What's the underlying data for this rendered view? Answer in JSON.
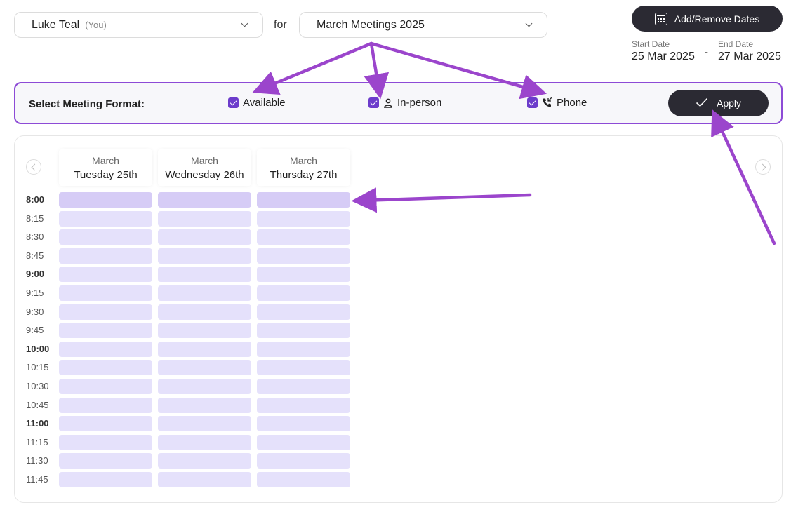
{
  "header": {
    "user_select": {
      "name": "Luke Teal",
      "tag": "(You)"
    },
    "for_label": "for",
    "meeting_select": {
      "value": "March Meetings 2025"
    },
    "add_dates_label": "Add/Remove Dates",
    "start_date": {
      "label": "Start Date",
      "value": "25 Mar 2025"
    },
    "date_separator": "-",
    "end_date": {
      "label": "End Date",
      "value": "27 Mar 2025"
    }
  },
  "format_bar": {
    "label": "Select Meeting Format:",
    "options": [
      {
        "label": "Available",
        "checked": true
      },
      {
        "label": "In-person",
        "checked": true,
        "icon": "person-icon"
      },
      {
        "label": "Phone",
        "checked": true,
        "icon": "phone-icon"
      }
    ],
    "apply_label": "Apply"
  },
  "calendar": {
    "days": [
      {
        "month": "March",
        "day": "Tuesday 25th"
      },
      {
        "month": "March",
        "day": "Wednesday 26th"
      },
      {
        "month": "March",
        "day": "Thursday 27th"
      }
    ],
    "times": [
      "8:00",
      "8:15",
      "8:30",
      "8:45",
      "9:00",
      "9:15",
      "9:30",
      "9:45",
      "10:00",
      "10:15",
      "10:30",
      "10:45",
      "11:00",
      "11:15",
      "11:30",
      "11:45"
    ]
  },
  "colors": {
    "accent": "#8d4bd6",
    "checkbox": "#6c3ccb",
    "dark_button": "#2b2a33",
    "slot": "#e5e1fb",
    "slot_highlight": "#d6ccf6",
    "annotation_arrow": "#9b45cc"
  }
}
